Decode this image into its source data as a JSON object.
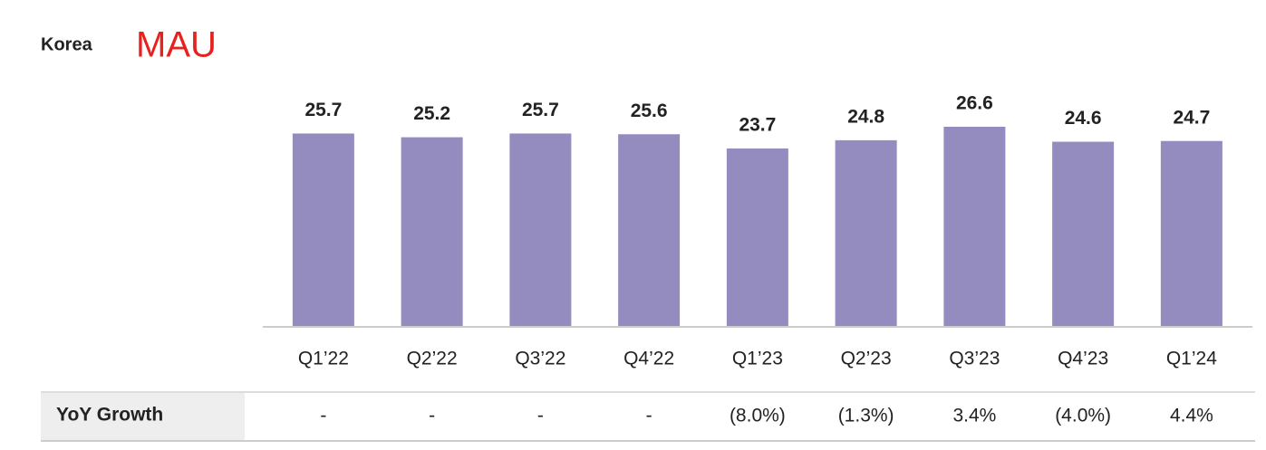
{
  "chart_data": {
    "type": "bar",
    "title": "Korea",
    "subtitle": "MAU",
    "categories": [
      "Q1’22",
      "Q2’22",
      "Q3’22",
      "Q4’22",
      "Q1’23",
      "Q2’23",
      "Q3’23",
      "Q4’23",
      "Q1’24"
    ],
    "values": [
      25.7,
      25.2,
      25.7,
      25.6,
      23.7,
      24.8,
      26.6,
      24.6,
      24.7
    ],
    "color": "#948bbf",
    "growth": {
      "label": "YoY Growth",
      "values": [
        "-",
        "-",
        "-",
        "-",
        "(8.0%)",
        "(1.3%)",
        "3.4%",
        "(4.0%)",
        "4.4%"
      ]
    }
  }
}
